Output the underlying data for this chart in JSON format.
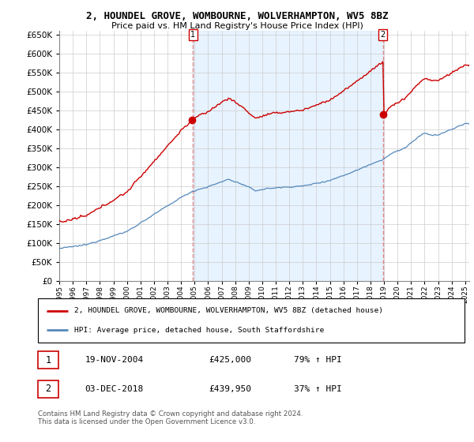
{
  "title": "2, HOUNDEL GROVE, WOMBOURNE, WOLVERHAMPTON, WV5 8BZ",
  "subtitle": "Price paid vs. HM Land Registry's House Price Index (HPI)",
  "hpi_label": "HPI: Average price, detached house, South Staffordshire",
  "property_label": "2, HOUNDEL GROVE, WOMBOURNE, WOLVERHAMPTON, WV5 8BZ (detached house)",
  "sale1_date": "19-NOV-2004",
  "sale1_price": 425000,
  "sale1_pct": "79% ↑ HPI",
  "sale2_date": "03-DEC-2018",
  "sale2_price": 439950,
  "sale2_pct": "37% ↑ HPI",
  "footer": "Contains HM Land Registry data © Crown copyright and database right 2024.\nThis data is licensed under the Open Government Licence v3.0.",
  "property_color": "#cc0000",
  "hpi_color": "#5588bb",
  "hpi_fill_color": "#ddeeff",
  "sale_marker_color": "#cc0000",
  "vline_color": "#dd8888",
  "ylim": [
    0,
    660000
  ],
  "yticks": [
    0,
    50000,
    100000,
    150000,
    200000,
    250000,
    300000,
    350000,
    400000,
    450000,
    500000,
    550000,
    600000,
    650000
  ],
  "background_color": "#ffffff"
}
